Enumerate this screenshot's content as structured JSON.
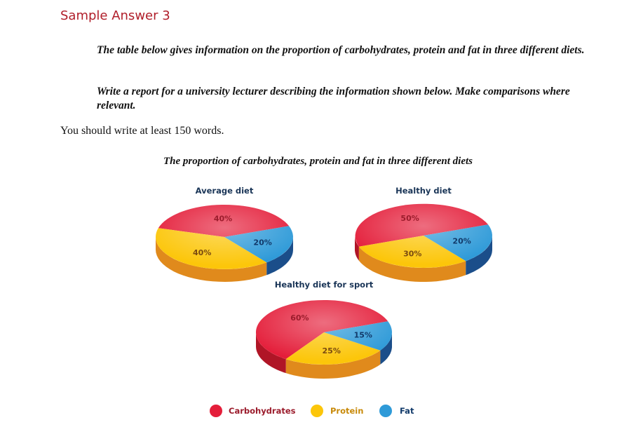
{
  "heading": "Sample Answer 3",
  "prompt": {
    "line1": "The table below gives information on the proportion of carbohydrates, protein and fat in three different diets.",
    "line2": "Write a report for a university lecturer describing the information shown below. Make comparisons where relevant."
  },
  "instruction": "You should write at least 150 words.",
  "colors": {
    "carbohydrates": "#e41e3a",
    "protein": "#fcc60a",
    "fat": "#2e9ad8",
    "carbohydrates_side": "#b01526",
    "protein_side": "#e08a1c",
    "fat_side": "#1b4e8a"
  },
  "chart_data": {
    "type": "pie",
    "title": "The proportion of carbohydrates, protein and fat in three different diets",
    "legend": [
      "Carbohydrates",
      "Protein",
      "Fat"
    ],
    "legend_placement": "bottom",
    "pies": [
      {
        "title": "Average diet",
        "labels": [
          "Carbohydrates",
          "Protein",
          "Fat"
        ],
        "values": [
          40,
          40,
          20
        ],
        "value_labels": [
          "40%",
          "40%",
          "20%"
        ]
      },
      {
        "title": "Healthy diet",
        "labels": [
          "Carbohydrates",
          "Protein",
          "Fat"
        ],
        "values": [
          50,
          30,
          20
        ],
        "value_labels": [
          "50%",
          "30%",
          "20%"
        ]
      },
      {
        "title": "Healthy diet for sport",
        "labels": [
          "Carbohydrates",
          "Protein",
          "Fat"
        ],
        "values": [
          60,
          25,
          15
        ],
        "value_labels": [
          "60%",
          "25%",
          "15%"
        ]
      }
    ]
  }
}
